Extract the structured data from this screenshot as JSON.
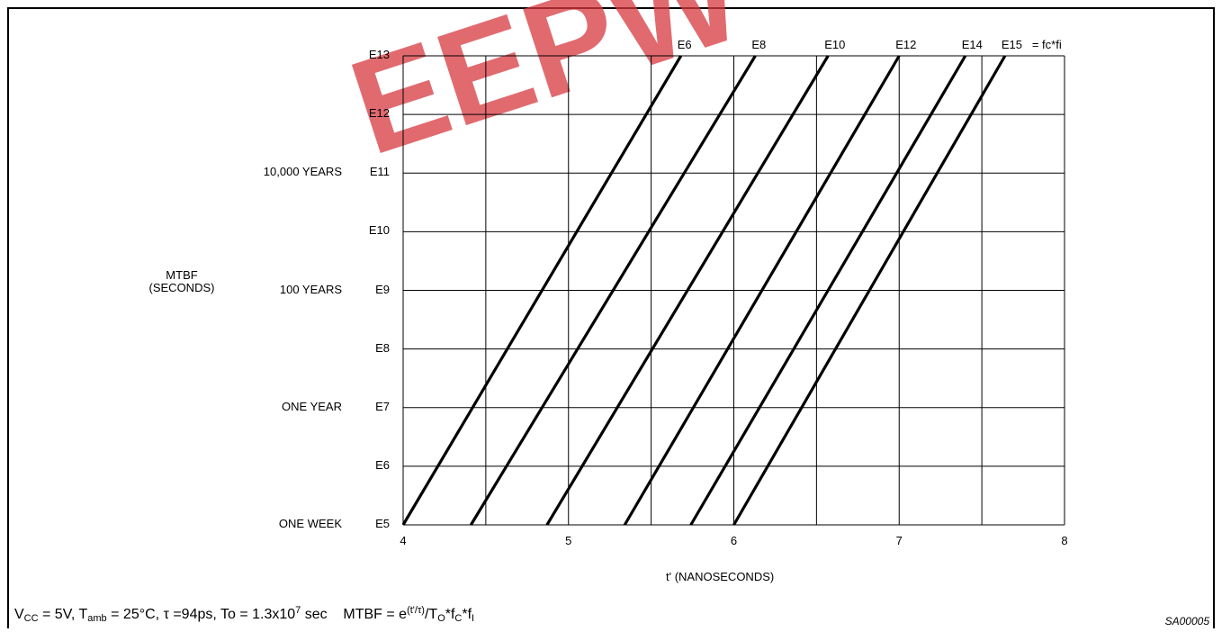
{
  "chart_data": {
    "type": "line",
    "xlabel": "t' (NANOSECONDS)",
    "ylabel": "MTBF (SECONDS)",
    "xlim": [
      4,
      8
    ],
    "ylim": [
      5,
      13
    ],
    "x_ticks": [
      "4",
      "5",
      "6",
      "7",
      "8"
    ],
    "y_ticks": [
      "E5",
      "E6",
      "E7",
      "E8",
      "E9",
      "E10",
      "E11",
      "E12",
      "E13"
    ],
    "y_time_labels": [
      {
        "y": 5,
        "label": "ONE WEEK"
      },
      {
        "y": 7,
        "label": "ONE YEAR"
      },
      {
        "y": 9,
        "label": "100 YEARS"
      },
      {
        "y": 11,
        "label": "10,000 YEARS"
      }
    ],
    "series_label_suffix": "= fc*fi",
    "series": [
      {
        "name": "E6",
        "x": [
          4.0,
          5.68
        ],
        "y": [
          5,
          13
        ]
      },
      {
        "name": "E8",
        "x": [
          4.41,
          6.13
        ],
        "y": [
          5,
          13
        ]
      },
      {
        "name": "E10",
        "x": [
          4.87,
          6.57
        ],
        "y": [
          5,
          13
        ]
      },
      {
        "name": "E12",
        "x": [
          5.34,
          7.0
        ],
        "y": [
          5,
          13
        ]
      },
      {
        "name": "E14",
        "x": [
          5.74,
          7.4
        ],
        "y": [
          5,
          13
        ]
      },
      {
        "name": "E15",
        "x": [
          6.0,
          7.64
        ],
        "y": [
          5,
          13
        ]
      }
    ],
    "grid": true,
    "grid_x_step": 0.5
  },
  "labels": {
    "ylabel_line1": "MTBF",
    "ylabel_line2": "(SECONDS)",
    "xlabel": "t' (NANOSECONDS)",
    "figure_id": "SA00005",
    "watermark": "EEPW"
  },
  "footer": {
    "vcc": "V",
    "vcc_sub": "CC",
    "vcc_rest": " = 5V, T",
    "tamb_sub": "amb",
    "tamb_rest": " = 25°C, τ =94ps, To = 1.3x10",
    "to_sup": "7",
    "to_rest": " sec    MTBF = e",
    "exp_sup": "(t'/τ)",
    "mid": "/T",
    "o_sub": "O",
    "fc": "*f",
    "c_sub": "C",
    "fi": "*f",
    "i_sub": "I"
  },
  "colors": {
    "ink": "#000000",
    "watermark": "#d8393f"
  }
}
